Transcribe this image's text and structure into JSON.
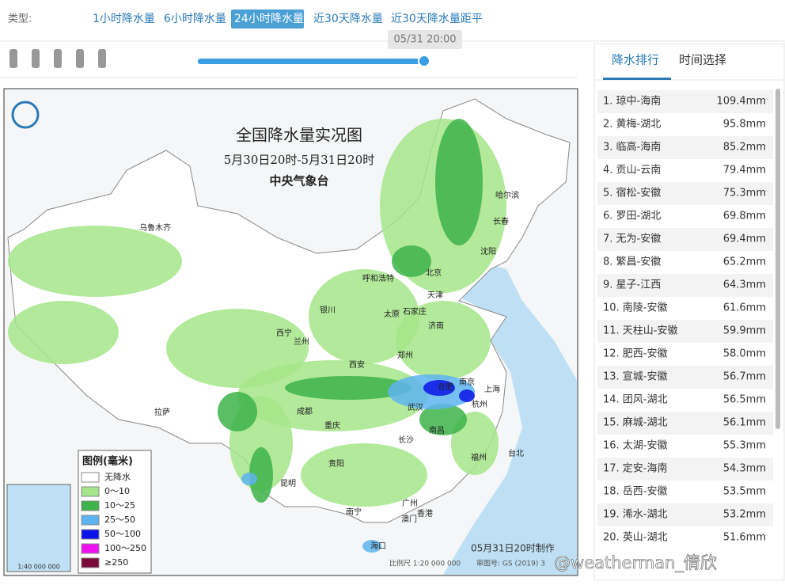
{
  "header": {
    "type_label": "类型:",
    "tabs": [
      "1小时降水量",
      "6小时降水量",
      "24小时降水量",
      "近30天降水量",
      "近30天降水量距平"
    ],
    "active_tab": 2
  },
  "slider": {
    "time": "05/31 20:00"
  },
  "map": {
    "title": "全国降水量实况图",
    "period": "5月30日20时-5月31日20时",
    "agency": "中央气象台",
    "legend_title": "图例(毫米)",
    "legend": [
      {
        "label": "无降水",
        "color": "#ffffff"
      },
      {
        "label": "0～10",
        "color": "#a6e58a"
      },
      {
        "label": "10～25",
        "color": "#3db34a"
      },
      {
        "label": "25～50",
        "color": "#5eb4f0"
      },
      {
        "label": "50～100",
        "color": "#0a14e6"
      },
      {
        "label": "100～250",
        "color": "#f010f0"
      },
      {
        "label": "≥250",
        "color": "#7a0a3a"
      }
    ],
    "cities": [
      "乌鲁木齐",
      "哈尔滨",
      "长春",
      "沈阳",
      "呼和浩特",
      "北京",
      "天津",
      "银川",
      "太原",
      "石家庄",
      "济南",
      "西宁",
      "兰州",
      "郑州",
      "西安",
      "合肥",
      "南京",
      "上海",
      "武汉",
      "杭州",
      "成都",
      "拉萨",
      "重庆",
      "长沙",
      "南昌",
      "福州",
      "台北",
      "贵阳",
      "昆明",
      "南宁",
      "广州",
      "澳门",
      "香港",
      "海口"
    ],
    "made": "05月31日20时制作",
    "scale": "比例尺 1:20 000 000",
    "approval": "审图号: GS (2019) 3",
    "inset_scale": "1:40 000 000"
  },
  "ranking": {
    "tabs": [
      "降水排行",
      "时间选择"
    ],
    "items": [
      {
        "name": "1. 琼中-海南",
        "value": "109.4mm"
      },
      {
        "name": "2. 黄梅-湖北",
        "value": "95.8mm"
      },
      {
        "name": "3. 临高-海南",
        "value": "85.2mm"
      },
      {
        "name": "4. 贡山-云南",
        "value": "79.4mm"
      },
      {
        "name": "5. 宿松-安徽",
        "value": "75.3mm"
      },
      {
        "name": "6. 罗田-湖北",
        "value": "69.8mm"
      },
      {
        "name": "7. 无为-安徽",
        "value": "69.4mm"
      },
      {
        "name": "8. 繁昌-安徽",
        "value": "65.2mm"
      },
      {
        "name": "9. 星子-江西",
        "value": "64.3mm"
      },
      {
        "name": "10. 南陵-安徽",
        "value": "61.6mm"
      },
      {
        "name": "11. 天柱山-安徽",
        "value": "59.9mm"
      },
      {
        "name": "12. 肥西-安徽",
        "value": "58.0mm"
      },
      {
        "name": "13. 宣城-安徽",
        "value": "56.7mm"
      },
      {
        "name": "14. 团风-湖北",
        "value": "56.5mm"
      },
      {
        "name": "15. 麻城-湖北",
        "value": "56.1mm"
      },
      {
        "name": "16. 太湖-安徽",
        "value": "55.3mm"
      },
      {
        "name": "17. 定安-海南",
        "value": "54.3mm"
      },
      {
        "name": "18. 岳西-安徽",
        "value": "53.5mm"
      },
      {
        "name": "19. 浠水-湖北",
        "value": "53.2mm"
      },
      {
        "name": "20. 英山-湖北",
        "value": "51.6mm"
      }
    ]
  },
  "watermark": "@weatherman_倩欣"
}
